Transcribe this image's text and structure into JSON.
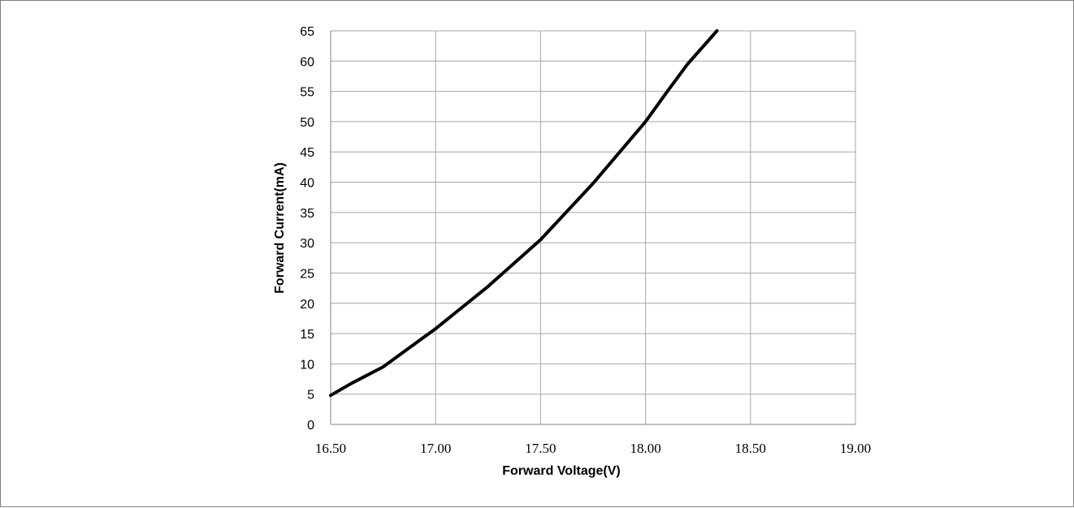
{
  "chart_data": {
    "type": "line",
    "title": "",
    "xlabel": "Forward Voltage(V)",
    "ylabel": "Forward Current(mA)",
    "xlim": [
      16.5,
      19.0
    ],
    "ylim": [
      0,
      65
    ],
    "x_ticks": [
      "16.50",
      "17.00",
      "17.50",
      "18.00",
      "18.50",
      "19.00"
    ],
    "y_ticks": [
      "0",
      "5",
      "10",
      "15",
      "20",
      "25",
      "30",
      "35",
      "40",
      "45",
      "50",
      "55",
      "60",
      "65"
    ],
    "grid": true,
    "legend": "none",
    "series": [
      {
        "color": "#000000",
        "x": [
          16.5,
          16.6,
          16.75,
          16.9,
          17.0,
          17.25,
          17.5,
          17.75,
          18.0,
          18.1,
          18.2,
          18.34
        ],
        "y": [
          4.8,
          6.8,
          9.5,
          13.3,
          15.8,
          22.8,
          30.5,
          39.8,
          50.0,
          54.8,
          59.5,
          65.0
        ]
      }
    ]
  }
}
